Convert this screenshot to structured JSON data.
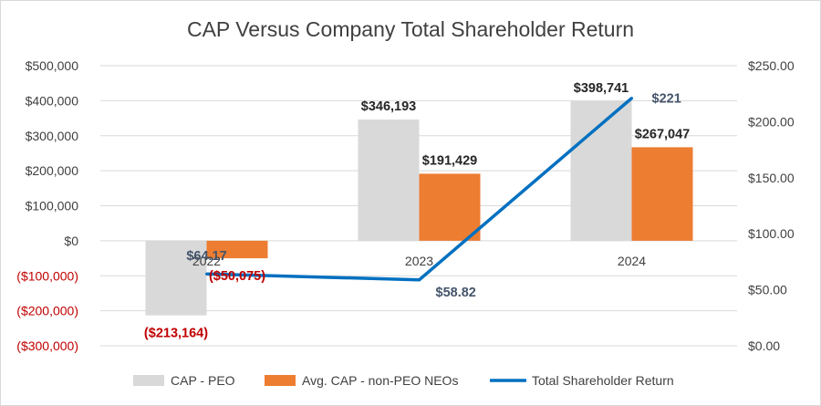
{
  "chart_data": {
    "type": "bar",
    "title": "CAP Versus Company Total Shareholder Return",
    "categories": [
      "2022",
      "2023",
      "2024"
    ],
    "series": [
      {
        "name": "CAP - PEO",
        "kind": "bar",
        "axis": "left",
        "color": "#d9d9d9",
        "values": [
          -213164,
          346193,
          398741
        ],
        "labels": [
          "($213,164)",
          "$346,193",
          "$398,741"
        ]
      },
      {
        "name": "Avg. CAP - non-PEO NEOs",
        "kind": "bar",
        "axis": "left",
        "color": "#ed7d31",
        "values": [
          -50075,
          191429,
          267047
        ],
        "labels": [
          "($50,075)",
          "$191,429",
          "$267,047"
        ]
      },
      {
        "name": "Total Shareholder Return",
        "kind": "line",
        "axis": "right",
        "color": "#0070c0",
        "values": [
          64.17,
          58.82,
          221
        ],
        "labels": [
          "$64.17",
          "$58.82",
          "$221"
        ]
      }
    ],
    "y_left": {
      "ylim": [
        -300000,
        500000
      ],
      "ticks": [
        500000,
        400000,
        300000,
        200000,
        100000,
        0,
        -100000,
        -200000,
        -300000
      ],
      "tick_labels": [
        "$500,000",
        "$400,000",
        "$300,000",
        "$200,000",
        "$100,000",
        "$0",
        "($100,000)",
        "($200,000)",
        "($300,000)"
      ]
    },
    "y_right": {
      "ylim": [
        0,
        250
      ],
      "ticks": [
        250,
        200,
        150,
        100,
        50,
        0
      ],
      "tick_labels": [
        "$250.00",
        "$200.00",
        "$150.00",
        "$100.00",
        "$50.00",
        "$0.00"
      ]
    },
    "grid": true,
    "legend_position": "bottom",
    "negative_color": "#c00000"
  }
}
